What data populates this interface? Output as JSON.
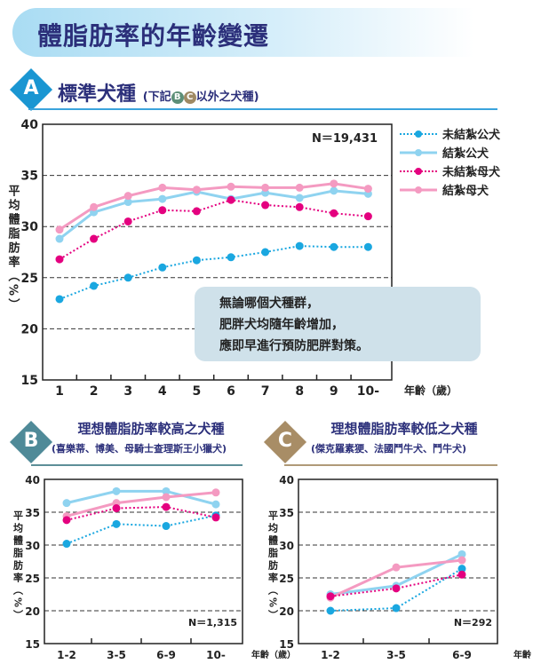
{
  "title": "體脂肪率的年齡變遷",
  "section_a": {
    "letter": "A",
    "title": "標準犬種",
    "note_prefix": "(下記",
    "note_b": "B",
    "note_c": "C",
    "note_suffix": "以外之犬種)"
  },
  "section_b": {
    "letter": "B",
    "title": "理想體脂肪率較高之犬種",
    "breeds": "(喜樂蒂、博美、母騎士查理斯王小獵犬)"
  },
  "section_c": {
    "letter": "C",
    "title": "理想體脂肪率較低之犬種",
    "breeds": "(傑克羅素㹴、法國鬥牛犬、鬥牛犬)"
  },
  "legend": [
    {
      "name": "未結紮公犬",
      "color": "#1aa7e0",
      "style": "dotted"
    },
    {
      "name": "結紮公犬",
      "color": "#8fd3f0",
      "style": "solid"
    },
    {
      "name": "未結紮母犬",
      "color": "#e4007f",
      "style": "dotted"
    },
    {
      "name": "結紮母犬",
      "color": "#f49ac1",
      "style": "solid"
    }
  ],
  "callout": [
    "無論哪個犬種群，",
    "肥胖犬均隨年齡增加，",
    "應即早進行預防肥胖對策。"
  ],
  "chart_data": [
    {
      "type": "line",
      "id": "A",
      "n_label": "N＝19,431",
      "ylabel": "平均體脂肪率（%）",
      "xlabel": "年齡（歲）",
      "ylim": [
        15,
        40
      ],
      "yticks": [
        15,
        20,
        25,
        30,
        35,
        40
      ],
      "grid": "dashed at 20,25,30,35",
      "categories": [
        "1",
        "2",
        "3",
        "4",
        "5",
        "6",
        "7",
        "8",
        "9",
        "10-"
      ],
      "series": [
        {
          "name": "未結紮公犬",
          "values": [
            22.9,
            24.2,
            25.0,
            26.0,
            26.7,
            27.0,
            27.5,
            28.1,
            28.0,
            28.0
          ]
        },
        {
          "name": "結紮公犬",
          "values": [
            28.8,
            31.4,
            32.4,
            32.7,
            33.4,
            32.7,
            33.3,
            32.8,
            33.5,
            33.2
          ]
        },
        {
          "name": "未結紮母犬",
          "values": [
            26.8,
            28.8,
            30.5,
            31.6,
            31.5,
            32.6,
            32.1,
            31.9,
            31.3,
            31.0
          ]
        },
        {
          "name": "結紮母犬",
          "values": [
            29.7,
            31.9,
            33.0,
            33.8,
            33.6,
            33.9,
            33.8,
            33.8,
            34.2,
            33.7
          ]
        }
      ]
    },
    {
      "type": "line",
      "id": "B",
      "n_label": "N＝1,315",
      "ylabel": "平均體脂肪率（%）",
      "xlabel": "年齡（歲）",
      "ylim": [
        15,
        40
      ],
      "yticks": [
        15,
        20,
        25,
        30,
        35,
        40
      ],
      "categories": [
        "1-2",
        "3-5",
        "6-9",
        "10-"
      ],
      "series": [
        {
          "name": "未結紮公犬",
          "values": [
            30.2,
            33.2,
            32.9,
            34.5
          ]
        },
        {
          "name": "結紮公犬",
          "values": [
            36.4,
            38.2,
            38.2,
            36.2
          ]
        },
        {
          "name": "未結紮母犬",
          "values": [
            33.8,
            35.6,
            35.8,
            34.2
          ]
        },
        {
          "name": "結紮母犬",
          "values": [
            34.4,
            36.4,
            37.3,
            38.0
          ]
        }
      ]
    },
    {
      "type": "line",
      "id": "C",
      "n_label": "N＝292",
      "ylabel": "平均體脂肪率（%）",
      "xlabel": "年齡（歲）",
      "ylim": [
        15,
        40
      ],
      "yticks": [
        15,
        20,
        25,
        30,
        35,
        40
      ],
      "categories": [
        "1-2",
        "3-5",
        "6-9"
      ],
      "series": [
        {
          "name": "未結紮公犬",
          "values": [
            20.0,
            20.4,
            26.4
          ]
        },
        {
          "name": "結紮公犬",
          "values": [
            22.5,
            23.8,
            28.6
          ]
        },
        {
          "name": "未結紮母犬",
          "values": [
            22.2,
            23.4,
            25.5
          ]
        },
        {
          "name": "結紮母犬",
          "values": [
            22.0,
            26.6,
            27.7
          ]
        }
      ]
    }
  ]
}
